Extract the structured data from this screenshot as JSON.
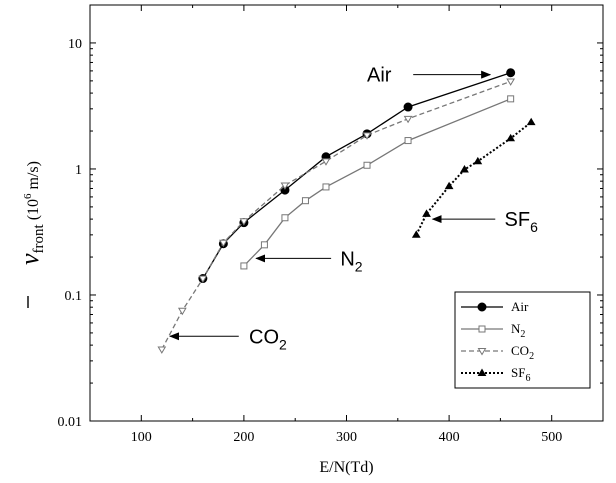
{
  "chart_data": {
    "type": "line",
    "xlabel": "E/N(Td)",
    "ylabel": {
      "symbol": "v",
      "subscript": "front",
      "unit_pre": "(10",
      "unit_exp": "6",
      "unit_post": " m/s)"
    },
    "xlim": [
      50,
      550
    ],
    "ylim": [
      0.01,
      20
    ],
    "yscale": "log",
    "xticks": [
      "100",
      "200",
      "300",
      "400",
      "500"
    ],
    "yticks": [
      "0.01",
      "0.1",
      "1",
      "10"
    ],
    "legend_position": "lower-right",
    "series": [
      {
        "name": "Air",
        "color": "#000000",
        "dash": "",
        "marker": "filled-circle",
        "x": [
          160,
          180,
          200,
          240,
          280,
          320,
          360,
          460
        ],
        "y": [
          0.135,
          0.255,
          0.375,
          0.68,
          1.25,
          1.9,
          3.1,
          5.8
        ]
      },
      {
        "name": "N",
        "sub": "2",
        "color": "#777777",
        "dash": "",
        "marker": "open-square",
        "x": [
          200,
          220,
          240,
          260,
          280,
          320,
          360,
          460
        ],
        "y": [
          0.17,
          0.25,
          0.41,
          0.56,
          0.72,
          1.07,
          1.68,
          3.6
        ]
      },
      {
        "name": "CO",
        "sub": "2",
        "color": "#777777",
        "dash": "5,3",
        "marker": "open-triangle-down",
        "x": [
          120,
          140,
          160,
          180,
          200,
          240,
          280,
          320,
          360,
          460
        ],
        "y": [
          0.037,
          0.075,
          0.135,
          0.26,
          0.385,
          0.74,
          1.15,
          1.85,
          2.5,
          4.95
        ]
      },
      {
        "name": "SF",
        "sub": "6",
        "color": "#000000",
        "dash": "2,2",
        "marker": "filled-triangle-up",
        "x": [
          368,
          378,
          400,
          415,
          428,
          460,
          480
        ],
        "y": [
          0.3,
          0.44,
          0.73,
          0.99,
          1.15,
          1.75,
          2.35
        ]
      }
    ],
    "annotations": [
      {
        "text": "Air",
        "sub": "",
        "label_x": 320,
        "label_y": 5.6,
        "arrow_tail_x": 365,
        "arrow_tail_y": 5.6,
        "arrow_head_x": 440,
        "arrow_head_y": 5.6
      },
      {
        "text": "N",
        "sub": "2",
        "label_x": 294,
        "label_y": 0.195,
        "arrow_tail_x": 285,
        "arrow_tail_y": 0.195,
        "arrow_head_x": 212,
        "arrow_head_y": 0.195
      },
      {
        "text": "SF",
        "sub": "6",
        "label_x": 454,
        "label_y": 0.4,
        "arrow_tail_x": 445,
        "arrow_tail_y": 0.4,
        "arrow_head_x": 384,
        "arrow_head_y": 0.4
      },
      {
        "text": "CO",
        "sub": "2",
        "label_x": 205,
        "label_y": 0.047,
        "arrow_tail_x": 195,
        "arrow_tail_y": 0.047,
        "arrow_head_x": 128,
        "arrow_head_y": 0.047
      }
    ]
  }
}
